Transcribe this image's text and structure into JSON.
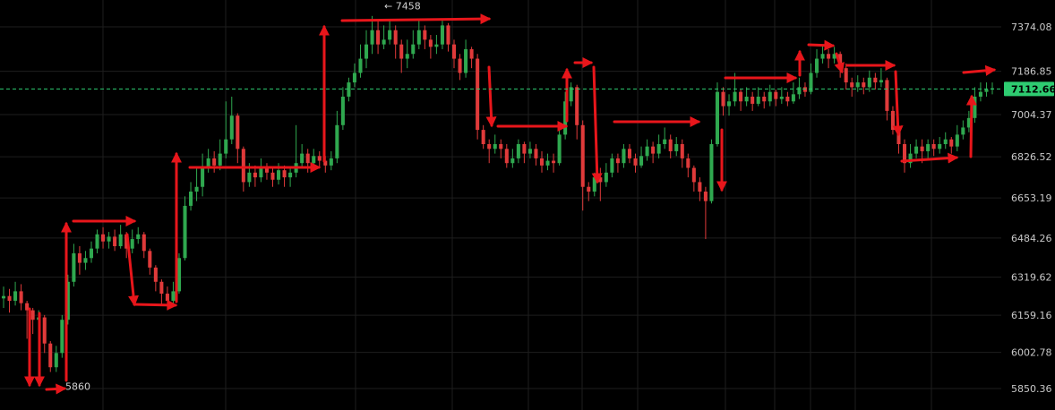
{
  "chart_data": {
    "type": "candlestick",
    "title": "",
    "xlabel": "",
    "ylabel": "",
    "ylim": [
      5820,
      7480
    ],
    "y_axis_position": "right",
    "grid": true,
    "y_ticks": [
      "7374.08",
      "7186.85",
      "7004.37",
      "6826.52",
      "6653.19",
      "6484.26",
      "6319.62",
      "6159.16",
      "6002.78",
      "5850.36"
    ],
    "current_price": "7112.66",
    "current_price_value": 7112.66,
    "high_label": "← 7458",
    "high_value": 7458,
    "low_label": "5860",
    "low_value": 5860,
    "colors": {
      "up": "#2fa84f",
      "down": "#e03a3a",
      "current": "#2ecc71",
      "arrow": "#e8161b",
      "grid": "#1e1e1e"
    },
    "candles": [
      [
        6230,
        6240,
        6280,
        6190
      ],
      [
        6240,
        6220,
        6270,
        6170
      ],
      [
        6220,
        6260,
        6300,
        6200
      ],
      [
        6260,
        6210,
        6290,
        6180
      ],
      [
        6210,
        6180,
        6220,
        6060
      ],
      [
        6180,
        6140,
        6190,
        6080
      ],
      [
        6140,
        6150,
        6180,
        6100
      ],
      [
        6150,
        6040,
        6160,
        6000
      ],
      [
        6040,
        5940,
        6050,
        5920
      ],
      [
        5940,
        6000,
        6030,
        5920
      ],
      [
        6000,
        6140,
        6160,
        5980
      ],
      [
        6140,
        6300,
        6330,
        6120
      ],
      [
        6300,
        6420,
        6460,
        6280
      ],
      [
        6420,
        6380,
        6450,
        6330
      ],
      [
        6380,
        6400,
        6430,
        6350
      ],
      [
        6400,
        6440,
        6470,
        6380
      ],
      [
        6440,
        6500,
        6520,
        6420
      ],
      [
        6500,
        6470,
        6530,
        6440
      ],
      [
        6470,
        6490,
        6510,
        6440
      ],
      [
        6490,
        6450,
        6520,
        6430
      ],
      [
        6450,
        6500,
        6540,
        6440
      ],
      [
        6500,
        6440,
        6510,
        6400
      ],
      [
        6440,
        6480,
        6520,
        6420
      ],
      [
        6480,
        6500,
        6530,
        6460
      ],
      [
        6500,
        6430,
        6510,
        6400
      ],
      [
        6430,
        6360,
        6440,
        6330
      ],
      [
        6360,
        6300,
        6370,
        6260
      ],
      [
        6300,
        6250,
        6310,
        6200
      ],
      [
        6250,
        6220,
        6280,
        6180
      ],
      [
        6220,
        6260,
        6300,
        6200
      ],
      [
        6260,
        6400,
        6420,
        6250
      ],
      [
        6400,
        6620,
        6660,
        6390
      ],
      [
        6620,
        6680,
        6720,
        6600
      ],
      [
        6680,
        6700,
        6780,
        6640
      ],
      [
        6700,
        6780,
        6840,
        6660
      ],
      [
        6780,
        6820,
        6860,
        6760
      ],
      [
        6820,
        6790,
        6850,
        6760
      ],
      [
        6790,
        6840,
        6900,
        6770
      ],
      [
        6840,
        6900,
        7060,
        6820
      ],
      [
        6900,
        7000,
        7080,
        6880
      ],
      [
        7000,
        6860,
        7010,
        6800
      ],
      [
        6860,
        6720,
        6870,
        6680
      ],
      [
        6720,
        6760,
        6800,
        6700
      ],
      [
        6760,
        6740,
        6790,
        6700
      ],
      [
        6740,
        6780,
        6820,
        6720
      ],
      [
        6780,
        6760,
        6800,
        6730
      ],
      [
        6760,
        6730,
        6780,
        6700
      ],
      [
        6730,
        6770,
        6800,
        6710
      ],
      [
        6770,
        6740,
        6790,
        6700
      ],
      [
        6740,
        6760,
        6780,
        6700
      ],
      [
        6760,
        6800,
        6960,
        6740
      ],
      [
        6800,
        6840,
        6880,
        6780
      ],
      [
        6840,
        6800,
        6860,
        6760
      ],
      [
        6800,
        6830,
        6860,
        6780
      ],
      [
        6830,
        6810,
        6850,
        6780
      ],
      [
        6810,
        6790,
        6830,
        6760
      ],
      [
        6790,
        6820,
        6850,
        6770
      ],
      [
        6820,
        6960,
        7020,
        6800
      ],
      [
        6960,
        7080,
        7120,
        6940
      ],
      [
        7080,
        7140,
        7160,
        7060
      ],
      [
        7140,
        7180,
        7220,
        7120
      ],
      [
        7180,
        7240,
        7300,
        7160
      ],
      [
        7240,
        7300,
        7360,
        7200
      ],
      [
        7300,
        7360,
        7420,
        7260
      ],
      [
        7360,
        7300,
        7400,
        7260
      ],
      [
        7300,
        7320,
        7380,
        7280
      ],
      [
        7320,
        7360,
        7400,
        7300
      ],
      [
        7360,
        7300,
        7380,
        7240
      ],
      [
        7300,
        7240,
        7320,
        7180
      ],
      [
        7240,
        7260,
        7320,
        7200
      ],
      [
        7260,
        7300,
        7360,
        7240
      ],
      [
        7300,
        7360,
        7400,
        7280
      ],
      [
        7360,
        7320,
        7380,
        7280
      ],
      [
        7320,
        7290,
        7340,
        7240
      ],
      [
        7290,
        7300,
        7340,
        7260
      ],
      [
        7300,
        7380,
        7400,
        7280
      ],
      [
        7380,
        7300,
        7390,
        7270
      ],
      [
        7300,
        7240,
        7320,
        7200
      ],
      [
        7240,
        7180,
        7260,
        7150
      ],
      [
        7180,
        7280,
        7320,
        7160
      ],
      [
        7280,
        7240,
        7290,
        7200
      ],
      [
        7240,
        6940,
        7260,
        6900
      ],
      [
        6940,
        6880,
        6960,
        6860
      ],
      [
        6880,
        6860,
        6900,
        6800
      ],
      [
        6860,
        6880,
        6920,
        6840
      ],
      [
        6880,
        6860,
        6900,
        6820
      ],
      [
        6860,
        6800,
        6880,
        6780
      ],
      [
        6800,
        6820,
        6860,
        6780
      ],
      [
        6820,
        6880,
        6900,
        6800
      ],
      [
        6880,
        6840,
        6890,
        6800
      ],
      [
        6840,
        6860,
        6890,
        6820
      ],
      [
        6860,
        6820,
        6880,
        6790
      ],
      [
        6820,
        6790,
        6850,
        6760
      ],
      [
        6790,
        6810,
        6840,
        6770
      ],
      [
        6810,
        6800,
        6840,
        6760
      ],
      [
        6800,
        6920,
        6960,
        6790
      ],
      [
        6920,
        7060,
        7100,
        6900
      ],
      [
        7060,
        7120,
        7140,
        7040
      ],
      [
        7120,
        6960,
        7130,
        6900
      ],
      [
        6960,
        6700,
        6980,
        6600
      ],
      [
        6700,
        6680,
        6720,
        6640
      ],
      [
        6680,
        6740,
        6760,
        6660
      ],
      [
        6740,
        6720,
        6780,
        6640
      ],
      [
        6720,
        6760,
        6800,
        6700
      ],
      [
        6760,
        6820,
        6840,
        6740
      ],
      [
        6820,
        6800,
        6840,
        6760
      ],
      [
        6800,
        6860,
        6880,
        6780
      ],
      [
        6860,
        6820,
        6880,
        6800
      ],
      [
        6820,
        6790,
        6840,
        6760
      ],
      [
        6790,
        6830,
        6870,
        6780
      ],
      [
        6830,
        6870,
        6900,
        6810
      ],
      [
        6870,
        6840,
        6890,
        6800
      ],
      [
        6840,
        6880,
        6920,
        6820
      ],
      [
        6880,
        6900,
        6950,
        6860
      ],
      [
        6900,
        6850,
        6920,
        6820
      ],
      [
        6850,
        6880,
        6910,
        6830
      ],
      [
        6880,
        6820,
        6900,
        6780
      ],
      [
        6820,
        6780,
        6840,
        6740
      ],
      [
        6780,
        6720,
        6790,
        6680
      ],
      [
        6720,
        6680,
        6740,
        6640
      ],
      [
        6680,
        6640,
        6700,
        6480
      ],
      [
        6640,
        6880,
        6900,
        6630
      ],
      [
        6880,
        7100,
        7140,
        6870
      ],
      [
        7100,
        7040,
        7120,
        7000
      ],
      [
        7040,
        7060,
        7090,
        7000
      ],
      [
        7060,
        7100,
        7180,
        7040
      ],
      [
        7100,
        7060,
        7110,
        7020
      ],
      [
        7060,
        7080,
        7120,
        7040
      ],
      [
        7080,
        7050,
        7100,
        7020
      ],
      [
        7050,
        7080,
        7120,
        7040
      ],
      [
        7080,
        7060,
        7100,
        7030
      ],
      [
        7060,
        7100,
        7130,
        7040
      ],
      [
        7100,
        7070,
        7110,
        7040
      ],
      [
        7070,
        7080,
        7120,
        7050
      ],
      [
        7080,
        7060,
        7100,
        7040
      ],
      [
        7060,
        7090,
        7140,
        7050
      ],
      [
        7090,
        7120,
        7160,
        7070
      ],
      [
        7120,
        7100,
        7140,
        7080
      ],
      [
        7100,
        7180,
        7220,
        7090
      ],
      [
        7180,
        7240,
        7280,
        7160
      ],
      [
        7240,
        7260,
        7300,
        7220
      ],
      [
        7260,
        7240,
        7280,
        7200
      ],
      [
        7240,
        7260,
        7290,
        7220
      ],
      [
        7260,
        7200,
        7270,
        7160
      ],
      [
        7200,
        7140,
        7220,
        7110
      ],
      [
        7140,
        7120,
        7160,
        7080
      ],
      [
        7120,
        7140,
        7170,
        7100
      ],
      [
        7140,
        7120,
        7160,
        7090
      ],
      [
        7120,
        7160,
        7190,
        7100
      ],
      [
        7160,
        7140,
        7180,
        7110
      ],
      [
        7140,
        7150,
        7200,
        7120
      ],
      [
        7150,
        7020,
        7160,
        6980
      ],
      [
        7020,
        6940,
        7040,
        6920
      ],
      [
        6940,
        6880,
        6960,
        6840
      ],
      [
        6880,
        6800,
        6900,
        6760
      ],
      [
        6800,
        6840,
        6880,
        6780
      ],
      [
        6840,
        6870,
        6900,
        6820
      ],
      [
        6870,
        6850,
        6900,
        6800
      ],
      [
        6850,
        6880,
        6900,
        6820
      ],
      [
        6880,
        6860,
        6900,
        6830
      ],
      [
        6860,
        6880,
        6910,
        6840
      ],
      [
        6880,
        6900,
        6930,
        6860
      ],
      [
        6900,
        6870,
        6910,
        6840
      ],
      [
        6870,
        6920,
        6960,
        6850
      ],
      [
        6920,
        6950,
        6980,
        6900
      ],
      [
        6950,
        6990,
        7020,
        6930
      ],
      [
        6990,
        7080,
        7120,
        6970
      ],
      [
        7080,
        7100,
        7140,
        7060
      ],
      [
        7100,
        7110,
        7140,
        7080
      ],
      [
        7110,
        7115,
        7140,
        7090
      ]
    ]
  }
}
